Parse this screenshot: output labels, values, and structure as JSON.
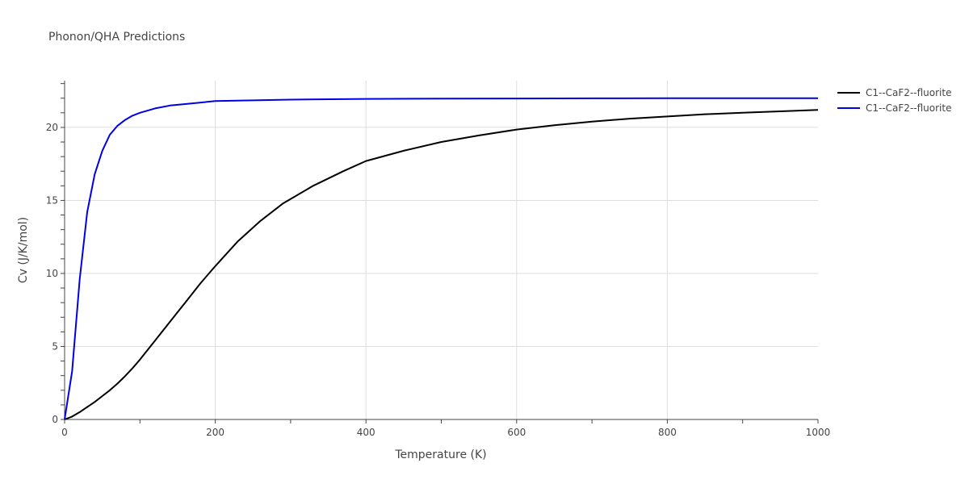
{
  "chart_data": {
    "type": "line",
    "title": "Phonon/QHA Predictions",
    "xlabel": "Temperature (K)",
    "ylabel": "Cv (J/K/mol)",
    "xlim": [
      0,
      1000
    ],
    "ylim": [
      0,
      23.2
    ],
    "xticks": [
      0,
      200,
      400,
      600,
      800,
      1000
    ],
    "yticks": [
      0,
      5,
      10,
      15,
      20
    ],
    "grid": true,
    "legend": "top-right",
    "series": [
      {
        "name": "C1--CaF2--fluorite",
        "color": "#000000",
        "x": [
          0,
          10,
          20,
          30,
          40,
          50,
          60,
          70,
          80,
          90,
          100,
          120,
          140,
          160,
          180,
          200,
          230,
          260,
          290,
          330,
          370,
          400,
          450,
          500,
          550,
          600,
          650,
          700,
          750,
          800,
          850,
          900,
          950,
          1000
        ],
        "y": [
          0,
          0.2,
          0.5,
          0.85,
          1.2,
          1.6,
          2.0,
          2.45,
          2.95,
          3.5,
          4.1,
          5.4,
          6.7,
          8.0,
          9.3,
          10.5,
          12.2,
          13.6,
          14.8,
          16.0,
          17.0,
          17.7,
          18.4,
          19.0,
          19.45,
          19.85,
          20.15,
          20.4,
          20.6,
          20.75,
          20.9,
          21.0,
          21.1,
          21.2
        ]
      },
      {
        "name": "C1--CaF2--fluorite",
        "color": "#0000e6",
        "x": [
          0,
          10,
          20,
          30,
          40,
          50,
          60,
          70,
          80,
          90,
          100,
          120,
          140,
          160,
          200,
          250,
          300,
          400,
          500,
          600,
          700,
          800,
          900,
          1000
        ],
        "y": [
          0,
          3.3,
          9.6,
          14.2,
          16.8,
          18.4,
          19.5,
          20.1,
          20.5,
          20.8,
          21.0,
          21.3,
          21.5,
          21.6,
          21.8,
          21.85,
          21.9,
          21.95,
          21.97,
          21.98,
          21.99,
          22.0,
          22.0,
          22.0
        ]
      }
    ]
  }
}
